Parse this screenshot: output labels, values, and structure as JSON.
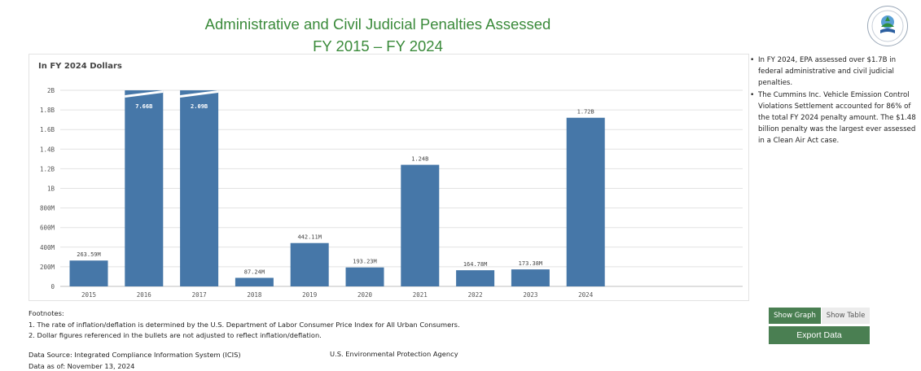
{
  "header": {
    "title_line1": "Administrative and Civil Judicial Penalties Assessed",
    "title_line2": "FY 2015 – FY 2024"
  },
  "logo": {
    "icon": "epa-seal-icon"
  },
  "chart_data": {
    "type": "bar",
    "unit_label": "In FY 2024 Dollars",
    "categories": [
      "2015",
      "2016",
      "2017",
      "2018",
      "2019",
      "2020",
      "2021",
      "2022",
      "2023",
      "2024"
    ],
    "values": [
      263590000,
      7660000000,
      2090000000,
      87240000,
      442110000,
      193230000,
      1240000000,
      164780000,
      173380000,
      1720000000
    ],
    "data_labels": [
      "263.59M",
      "7.66B",
      "2.09B",
      "87.24M",
      "442.11M",
      "193.23M",
      "1.24B",
      "164.78M",
      "173.38M",
      "1.72B"
    ],
    "truncated": [
      false,
      true,
      true,
      false,
      false,
      false,
      false,
      false,
      false,
      false
    ],
    "ylim": [
      0,
      2000000000
    ],
    "yticks": [
      0,
      200000000,
      400000000,
      600000000,
      800000000,
      1000000000,
      1200000000,
      1400000000,
      1600000000,
      1800000000,
      2000000000
    ],
    "ytick_labels": [
      "0",
      "200M",
      "400M",
      "600M",
      "800M",
      "1B",
      "1.2B",
      "1.4B",
      "1.6B",
      "1.8B",
      "2B"
    ],
    "bar_color": "#4677a8",
    "grid": true,
    "title": "",
    "xlabel": "",
    "ylabel": ""
  },
  "bullets": [
    "In FY 2024, EPA assessed over $1.7B in federal administrative and civil judicial penalties.",
    "The Cummins Inc. Vehicle Emission Control Violations Settlement accounted for 86% of the total FY 2024 penalty amount. The $1.48 billion penalty was the largest ever assessed in a Clean Air Act case."
  ],
  "footnotes": {
    "heading": "Footnotes:",
    "items": [
      "1. The rate of inflation/deflation is determined by the U.S. Department of Labor Consumer Price Index for All Urban Consumers.",
      "2. Dollar figures referenced in the bullets are not adjusted to reflect inflation/deflation."
    ]
  },
  "source": {
    "data_source": "Data Source: Integrated Compliance Information System (ICIS)",
    "data_as_of": "Data as of: November 13, 2024",
    "agency": "U.S. Environmental Protection Agency"
  },
  "controls": {
    "show_graph": "Show Graph",
    "show_table": "Show Table",
    "export": "Export Data"
  },
  "colors": {
    "title_green": "#3a8a3a",
    "button_green": "#4a7f52",
    "bar_blue": "#4677a8"
  }
}
